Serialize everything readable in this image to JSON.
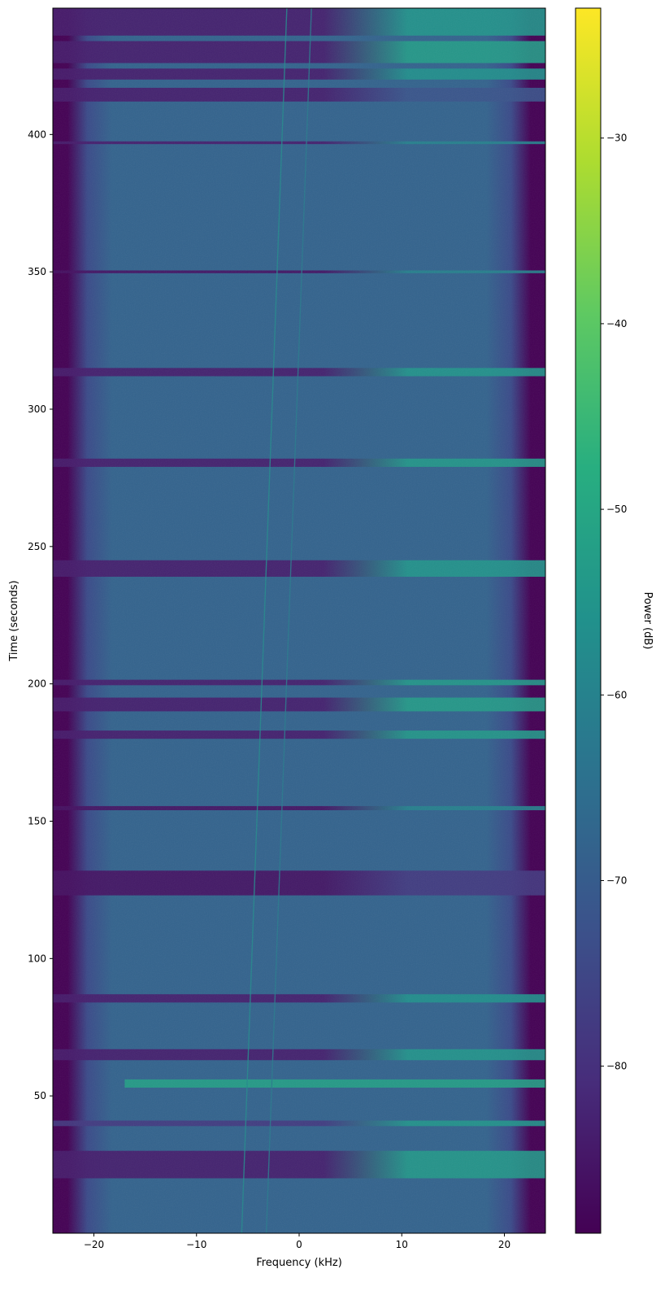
{
  "chart_data": {
    "type": "heatmap",
    "title": "",
    "xlabel": "Frequency (kHz)",
    "ylabel": "Time (seconds)",
    "xlim": [
      -24,
      24
    ],
    "ylim": [
      0,
      446
    ],
    "xticks": [
      -20,
      -10,
      0,
      10,
      20
    ],
    "xtick_labels": [
      "−20",
      "−10",
      "0",
      "10",
      "20"
    ],
    "yticks": [
      50,
      100,
      150,
      200,
      250,
      300,
      350,
      400
    ],
    "ytick_labels": [
      "50",
      "100",
      "150",
      "200",
      "250",
      "300",
      "350",
      "400"
    ],
    "colormap": "viridis",
    "colorbar": {
      "label": "Power (dB)",
      "range": [
        -89,
        -23
      ],
      "ticks": [
        -30,
        -40,
        -50,
        -60,
        -70,
        -80
      ],
      "tick_labels": [
        "−30",
        "−40",
        "−50",
        "−60",
        "−70",
        "−80"
      ]
    },
    "background_power_db": -67,
    "band_edge_power_db": -88,
    "passband_khz": [
      -21.5,
      20.5
    ],
    "interference_bursts": [
      {
        "t_start": 20,
        "t_end": 30,
        "f_start": -24,
        "f_end": 24,
        "power_left_db": -84,
        "power_right_db": -54
      },
      {
        "t_start": 39,
        "t_end": 41,
        "f_start": -24,
        "f_end": 24,
        "power_left_db": -78,
        "power_right_db": -55
      },
      {
        "t_start": 53,
        "t_end": 56,
        "f_start": -17,
        "f_end": 24,
        "power_left_db": -52,
        "power_right_db": -52
      },
      {
        "t_start": 63,
        "t_end": 67,
        "f_start": -24,
        "f_end": 24,
        "power_left_db": -84,
        "power_right_db": -55
      },
      {
        "t_start": 84,
        "t_end": 87,
        "f_start": -24,
        "f_end": 24,
        "power_left_db": -84,
        "power_right_db": -56
      },
      {
        "t_start": 123,
        "t_end": 132,
        "f_start": -24,
        "f_end": 24,
        "power_left_db": -86,
        "power_right_db": -78
      },
      {
        "t_start": 154,
        "t_end": 155.5,
        "f_start": -24,
        "f_end": 24,
        "power_left_db": -86,
        "power_right_db": -60
      },
      {
        "t_start": 180,
        "t_end": 183,
        "f_start": -24,
        "f_end": 24,
        "power_left_db": -84,
        "power_right_db": -54
      },
      {
        "t_start": 190,
        "t_end": 195,
        "f_start": -24,
        "f_end": 24,
        "power_left_db": -84,
        "power_right_db": -53
      },
      {
        "t_start": 199.5,
        "t_end": 201.5,
        "f_start": -24,
        "f_end": 24,
        "power_left_db": -84,
        "power_right_db": -54
      },
      {
        "t_start": 239,
        "t_end": 245,
        "f_start": -24,
        "f_end": 24,
        "power_left_db": -84,
        "power_right_db": -55
      },
      {
        "t_start": 279,
        "t_end": 282,
        "f_start": -24,
        "f_end": 24,
        "power_left_db": -84,
        "power_right_db": -54
      },
      {
        "t_start": 312,
        "t_end": 315,
        "f_start": -24,
        "f_end": 24,
        "power_left_db": -84,
        "power_right_db": -55
      },
      {
        "t_start": 349.5,
        "t_end": 350.5,
        "f_start": -24,
        "f_end": 24,
        "power_left_db": -86,
        "power_right_db": -60
      },
      {
        "t_start": 396.5,
        "t_end": 397.5,
        "f_start": -24,
        "f_end": 24,
        "power_left_db": -84,
        "power_right_db": -60
      },
      {
        "t_start": 412,
        "t_end": 417,
        "f_start": -24,
        "f_end": 24,
        "power_left_db": -84,
        "power_right_db": -72
      },
      {
        "t_start": 420,
        "t_end": 424,
        "f_start": -24,
        "f_end": 24,
        "power_left_db": -84,
        "power_right_db": -56
      },
      {
        "t_start": 426,
        "t_end": 434,
        "f_start": -24,
        "f_end": 24,
        "power_left_db": -84,
        "power_right_db": -53
      },
      {
        "t_start": 436,
        "t_end": 446,
        "f_start": -24,
        "f_end": 24,
        "power_left_db": -84,
        "power_right_db": -55
      }
    ],
    "drifting_tones": [
      {
        "t_start": 0,
        "t_end": 446,
        "f_start": -5.6,
        "f_end": -1.2,
        "power_db": -58
      },
      {
        "t_start": 0,
        "t_end": 446,
        "f_start": -3.2,
        "f_end": 1.2,
        "power_db": -62
      }
    ]
  }
}
